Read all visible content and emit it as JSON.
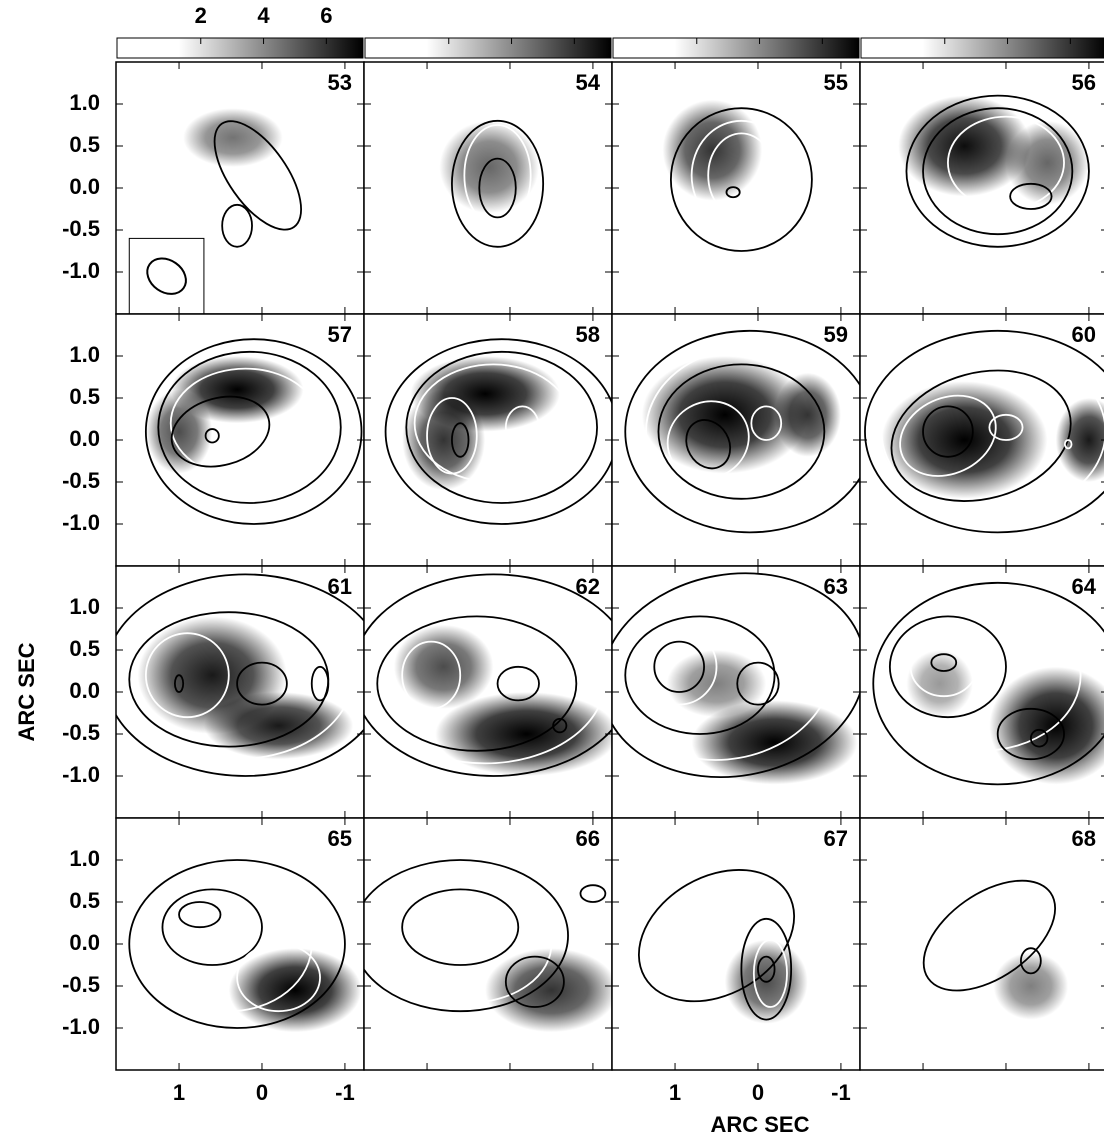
{
  "chart_data": {
    "type": "channel-maps",
    "xlabel": "ARC SEC",
    "ylabel": "ARC SEC",
    "colorbar": {
      "lim": [
        -0.7,
        7.2
      ],
      "ticks": [
        2,
        4,
        6
      ]
    },
    "xlim": [
      1.76,
      -1.23
    ],
    "xticks": [
      1,
      0,
      -1
    ],
    "ylim": [
      -1.5,
      1.5
    ],
    "yticks": [
      {
        "value": 1.0,
        "label": "1.0"
      },
      {
        "value": 0.5,
        "label": "0.5"
      },
      {
        "value": 0.0,
        "label": "0.0"
      },
      {
        "value": -0.5,
        "label": "-0.5"
      },
      {
        "value": -1.0,
        "label": "-1.0"
      }
    ],
    "panels": [
      "53",
      "54",
      "55",
      "56",
      "57",
      "58",
      "59",
      "60",
      "61",
      "62",
      "63",
      "64",
      "65",
      "66",
      "67",
      "68"
    ]
  }
}
